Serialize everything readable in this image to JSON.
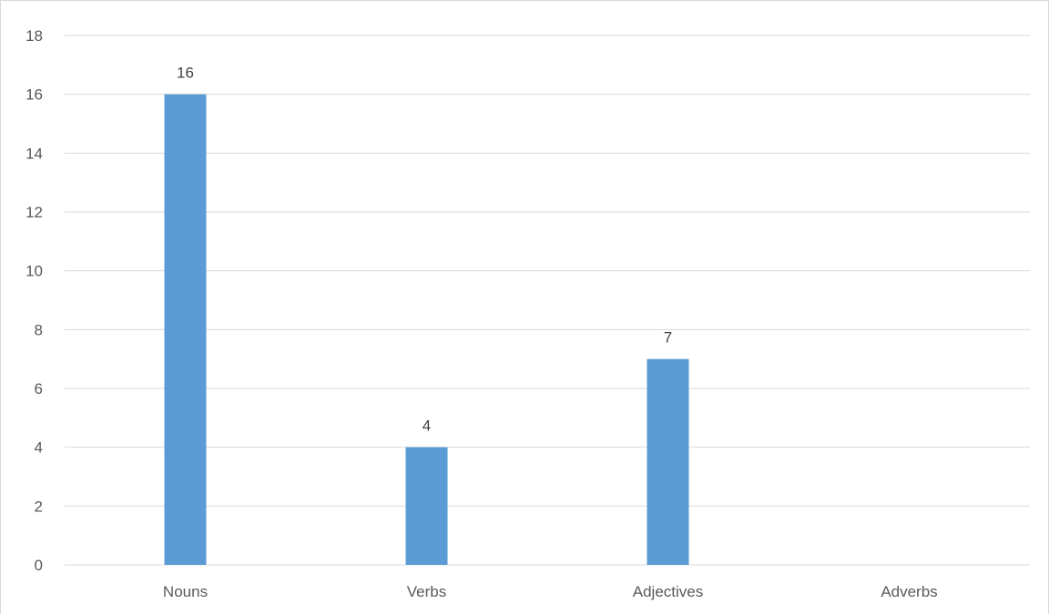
{
  "chart_data": {
    "type": "bar",
    "categories": [
      "Nouns",
      "Verbs",
      "Adjectives",
      "Adverbs"
    ],
    "values": [
      16,
      4,
      7,
      0
    ],
    "data_labels": [
      "16",
      "4",
      "7",
      ""
    ],
    "title": "",
    "xlabel": "",
    "ylabel": "",
    "ylim": [
      0,
      18
    ],
    "yticks": [
      0,
      2,
      4,
      6,
      8,
      10,
      12,
      14,
      16,
      18
    ],
    "grid": true,
    "legend": "none",
    "bar_color": "#5b9bd5"
  }
}
